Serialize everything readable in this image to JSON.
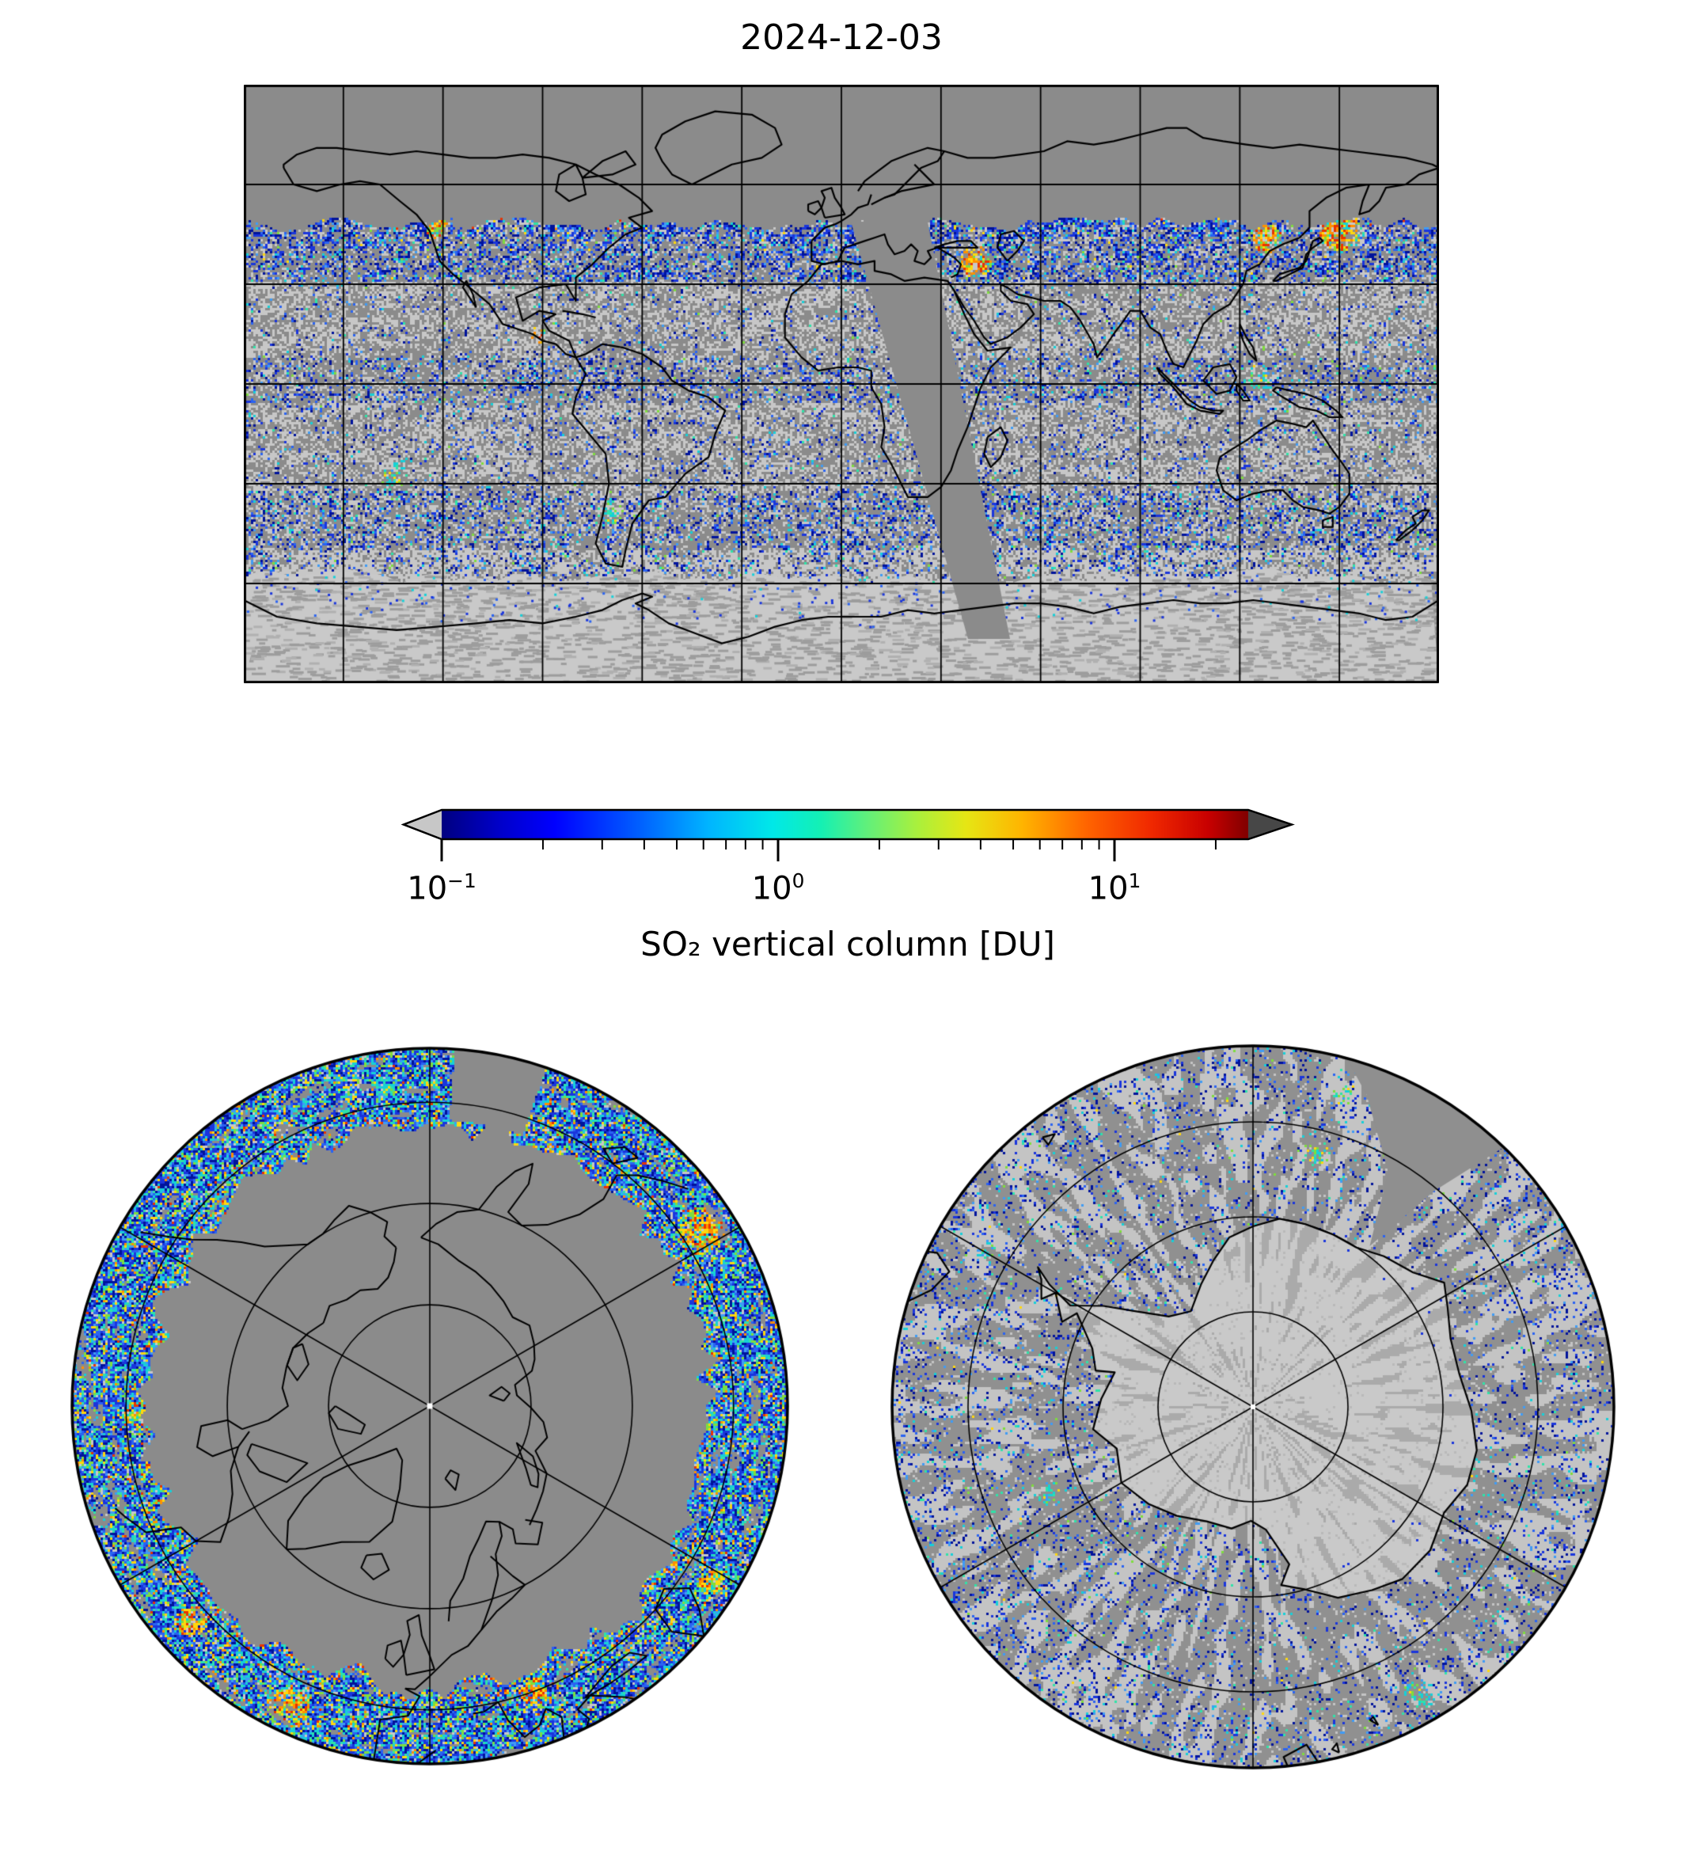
{
  "figure": {
    "title": "2024-12-03",
    "background": "#ffffff"
  },
  "colorbar": {
    "label": "SO₂ vertical column [DU]",
    "scale": "log10",
    "min_du": 0.1,
    "max_du": 25,
    "major_ticks": [
      {
        "value": 0.1,
        "display": "10⁻¹",
        "mantissa": "10",
        "exponent": "−1"
      },
      {
        "value": 1,
        "display": "10⁰",
        "mantissa": "10",
        "exponent": "0"
      },
      {
        "value": 10,
        "display": "10¹",
        "mantissa": "10",
        "exponent": "1"
      }
    ],
    "minor_ticks": [
      0.2,
      0.3,
      0.4,
      0.5,
      0.6,
      0.7,
      0.8,
      0.9,
      2,
      3,
      4,
      5,
      6,
      7,
      8,
      9,
      20
    ],
    "under_arrow_color": "#c7c7c7",
    "over_arrow_color": "#474747",
    "gradient_stops": [
      [
        "0",
        "#000080"
      ],
      [
        "0.07",
        "#0000c8"
      ],
      [
        "0.14",
        "#0000ff"
      ],
      [
        "0.25",
        "#0064ff"
      ],
      [
        "0.33",
        "#00b4ff"
      ],
      [
        "0.41",
        "#00e8e8"
      ],
      [
        "0.47",
        "#14f0b4"
      ],
      [
        "0.53",
        "#64f078"
      ],
      [
        "0.59",
        "#aaf03c"
      ],
      [
        "0.65",
        "#e6e614"
      ],
      [
        "0.72",
        "#ffb400"
      ],
      [
        "0.80",
        "#ff6400"
      ],
      [
        "0.88",
        "#f02800"
      ],
      [
        "0.95",
        "#c80000"
      ],
      [
        "1",
        "#800000"
      ]
    ]
  },
  "map_colors": {
    "no_data_gray": "#8b8b8b",
    "south_base_gray": "#909090",
    "below_threshold_light": "#c7c7c7",
    "ice_light": "#c9c9c9",
    "ice_dash": "#9d9d9d",
    "coastline": "#000000",
    "grid": "#000000",
    "pole_marker": "#ffffff",
    "speckle_palette": {
      "deepblue": "#00139b",
      "blue": "#1a35dc",
      "medblue": "#2a63f2",
      "skyblue": "#3f9bf5",
      "cyan": "#16d0d8",
      "teal": "#2fe3a8",
      "green": "#7edd3e",
      "yellow": "#ffd80e",
      "orange": "#ff9000",
      "red": "#e83300",
      "light": "#c7c7c7"
    }
  },
  "chart_data": {
    "type": "heatmap",
    "title": "2024-12-03",
    "variable": "SO2 vertical column",
    "units": "DU",
    "scale": "log10",
    "range_du": [
      0.1,
      25
    ],
    "colormap": "jet (blue to red); below 0.1 DU shown light gray; above 25 DU dark gray; flat gray = no data",
    "panels": [
      {
        "id": "global",
        "projection": "equirectangular",
        "lon_range": [
          -180,
          180
        ],
        "lat_range": [
          -90,
          90
        ],
        "grid_deg": 30,
        "data_lat_max": 48.5,
        "ice_zone_lat": -60,
        "missing_swath": {
          "from": {
            "lat": 48.5,
            "lon_range": [
              3,
              26
            ]
          },
          "to": {
            "lat": -77,
            "lon_range": [
              38,
              51
            ]
          }
        },
        "features": [
          "flat gray (polar night, no data) north of about 48N",
          "dense blue/cyan band with sporadic 1-10 DU yellow-red spots along the terminator 32-48N",
          "scattered 0.1-1 DU blue speckle over all sunlit oceans",
          "light gray sun-glint bands in the subtropics",
          "enhanced blue band over the Southern Ocean 35-57S",
          "light gray sea-ice zone south of 60S with sparse detections",
          "diagonal missing-orbit swath over Africa / Indian Ocean"
        ],
        "hotspots": [
          {
            "lon": 14.9,
            "lat": 37.7,
            "r": 16,
            "kind": "warm"
          },
          {
            "lon": 40,
            "lat": 37,
            "r": 20,
            "kind": "warm"
          },
          {
            "lon": -91,
            "lat": 14.7,
            "r": 14,
            "kind": "warm"
          },
          {
            "lon": 150,
            "lat": 46,
            "r": 26,
            "kind": "warm"
          },
          {
            "lon": 128,
            "lat": 44,
            "r": 18,
            "kind": "warm"
          },
          {
            "lon": 125,
            "lat": 2,
            "r": 18,
            "kind": "cyan"
          },
          {
            "lon": -135,
            "lat": -27,
            "r": 20,
            "kind": "cyan"
          },
          {
            "lon": -122,
            "lat": 47,
            "r": 14,
            "kind": "warm"
          },
          {
            "lon": -70,
            "lat": -38,
            "r": 16,
            "kind": "cyan"
          }
        ]
      },
      {
        "id": "north-polar",
        "projection": "north polar azimuthal, 0E meridian at bottom, 180E at top",
        "rim_lat": 37,
        "parallels_deg": [
          75,
          60,
          45
        ],
        "meridian_step_deg": 60,
        "terminator_lat": 47,
        "gap_wedge_az_deg": [
          4,
          19
        ],
        "features": [
          "uniform gray polar night inside about 47N",
          "colorful data annulus between about 47N and the 37N rim",
          "sporadic 1-10 DU yellow/orange/red clusters in the annulus",
          "white dot at the pole"
        ],
        "hotspots": [
          [
            57,
            0.9,
            30,
            "warm"
          ],
          [
            205,
            0.93,
            26,
            "warm"
          ],
          [
            228,
            0.9,
            20,
            "warm"
          ],
          [
            160,
            0.85,
            18,
            "warm"
          ],
          [
            122,
            0.93,
            16,
            "warm"
          ],
          [
            332,
            0.87,
            14,
            "warm"
          ],
          [
            352,
            0.9,
            14,
            "cyan"
          ],
          [
            268,
            0.82,
            18,
            "warm"
          ]
        ]
      },
      {
        "id": "south-polar",
        "projection": "south polar azimuthal, 0E meridian at top, 90E at right",
        "rim_lat": -52,
        "parallels_deg": [
          -80,
          -70,
          -60
        ],
        "meridian_step_deg": 60,
        "missing_wedge": {
          "az_deg": [
            15,
            44
          ],
          "tip_rf": 0.55
        },
        "features": [
          "full sunlit coverage: gray / light-gray speckle with scattered blue 0.1-0.5 DU",
          "Antarctica interior mostly below detection: light gray with radial gray streaks",
          "missing-orbit wedge near 20-45E reaching in to about 75S",
          "white dot at the pole"
        ],
        "hotspots": [
          [
            106,
            0.6,
            26,
            "cyanwarm"
          ],
          [
            150,
            0.92,
            20,
            "cyan"
          ],
          [
            247,
            0.62,
            20,
            "cyan"
          ],
          [
            14,
            0.72,
            18,
            "cyanwarm"
          ],
          [
            16,
            0.9,
            14,
            "cyan"
          ],
          [
            300,
            0.85,
            16,
            "cyan"
          ]
        ]
      }
    ]
  }
}
